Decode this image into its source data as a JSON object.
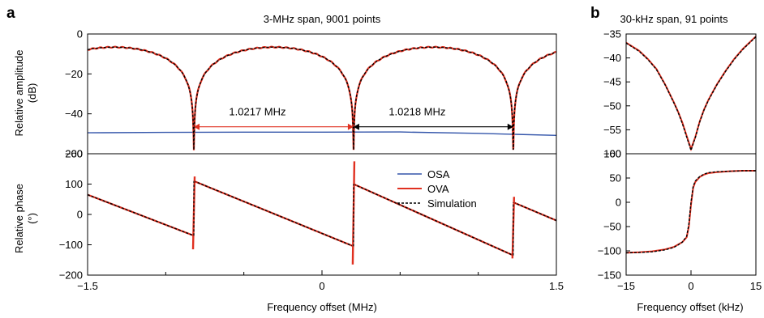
{
  "panel_labels": {
    "a": "a",
    "b": "b"
  },
  "colors": {
    "osa": "#3355aa",
    "ova": "#e03020",
    "sim": "#000000",
    "ann_red": "#e03020",
    "ann_black": "#000000"
  },
  "chart_data": [
    {
      "id": "a-amplitude",
      "type": "line",
      "title": "3-MHz span, 9001 points",
      "ylabel": [
        "Relative amplitude",
        "(dB)"
      ],
      "xlim": [
        -1.5,
        1.5
      ],
      "ylim": [
        -60,
        0
      ],
      "yticks": [
        0,
        -20,
        -40,
        -60
      ],
      "ytick_labels": [
        "0",
        "−20",
        "−40",
        "−60"
      ],
      "notch_centers": [
        -0.82,
        0.202,
        1.224
      ],
      "series": [
        {
          "name": "OSA",
          "key": "osa",
          "x": [
            -1.5,
            -1.0,
            -0.5,
            0.0,
            0.5,
            1.0,
            1.5
          ],
          "y": [
            -49.5,
            -49.3,
            -49.2,
            -49.2,
            -49.1,
            -49.8,
            -50.8
          ]
        },
        {
          "name": "OVA",
          "key": "ova",
          "peak": -6.6,
          "floor": -58
        },
        {
          "name": "Simulation",
          "key": "sim",
          "peak": -6.6,
          "floor": -58
        }
      ],
      "annotations": [
        {
          "text": "1.0217 MHz",
          "x_from": -0.82,
          "x_to": 0.202,
          "y": -46.5,
          "color": "ann_red"
        },
        {
          "text": "1.0218 MHz",
          "x_from": 0.202,
          "x_to": 1.224,
          "y": -46.5,
          "color": "ann_black"
        }
      ]
    },
    {
      "id": "a-phase",
      "type": "line",
      "xlabel": "Frequency offset (MHz)",
      "ylabel": [
        "Relative phase",
        "(°)"
      ],
      "xlim": [
        -1.5,
        1.5
      ],
      "ylim": [
        -200,
        200
      ],
      "xticks": [
        -1.5,
        0,
        1.5
      ],
      "xtick_labels": [
        "−1.5",
        "0",
        "1.5"
      ],
      "xminor": [
        -1.0,
        -0.5,
        0.5,
        1.0
      ],
      "yticks": [
        200,
        100,
        0,
        -100,
        -200
      ],
      "ytick_labels": [
        "200",
        "100",
        "0",
        "−100",
        "−200"
      ],
      "segments": [
        {
          "x": [
            -1.5,
            -0.82
          ],
          "y": [
            65,
            -70
          ]
        },
        {
          "x": [
            -0.82,
            0.202
          ],
          "y": [
            110,
            -105
          ]
        },
        {
          "x": [
            0.202,
            1.224
          ],
          "y": [
            100,
            -135
          ]
        },
        {
          "x": [
            1.224,
            1.5
          ],
          "y": [
            40,
            -20
          ]
        }
      ],
      "legend": {
        "position": "upper-right",
        "entries": [
          "OSA",
          "OVA",
          "Simulation"
        ]
      }
    },
    {
      "id": "b-amplitude",
      "type": "line",
      "title": "30-kHz span, 91 points",
      "xlim": [
        -15,
        15
      ],
      "ylim": [
        -60,
        -35
      ],
      "yticks": [
        -35,
        -40,
        -45,
        -50,
        -55,
        -60
      ],
      "ytick_labels": [
        "−35",
        "−40",
        "−45",
        "−50",
        "−55",
        "−60"
      ],
      "series": [
        {
          "name": "OVA",
          "key": "ova",
          "x": [
            -15,
            -12,
            -10,
            -8,
            -6,
            -4,
            -3,
            -2,
            -1,
            0,
            1,
            2,
            3,
            4,
            6,
            8,
            10,
            12,
            15
          ],
          "y": [
            -36.8,
            -38.5,
            -40.2,
            -42.3,
            -45.5,
            -49.2,
            -51.2,
            -53.5,
            -56.3,
            -59.0,
            -56.5,
            -53.3,
            -50.8,
            -48.8,
            -45.5,
            -42.7,
            -40.2,
            -38.1,
            -35.5
          ]
        },
        {
          "name": "Simulation",
          "key": "sim",
          "x": [
            -15,
            -12,
            -10,
            -8,
            -6,
            -4,
            -3,
            -2,
            -1,
            0,
            1,
            2,
            3,
            4,
            6,
            8,
            10,
            12,
            15
          ],
          "y": [
            -36.9,
            -38.6,
            -40.3,
            -42.4,
            -45.6,
            -49.3,
            -51.3,
            -53.7,
            -56.5,
            -59.3,
            -56.6,
            -53.4,
            -50.9,
            -48.9,
            -45.6,
            -42.8,
            -40.3,
            -38.2,
            -35.6
          ]
        }
      ]
    },
    {
      "id": "b-phase",
      "type": "line",
      "xlabel": "Frequency offset (kHz)",
      "xlim": [
        -15,
        15
      ],
      "ylim": [
        -150,
        100
      ],
      "xticks": [
        -15,
        0,
        15
      ],
      "xtick_labels": [
        "−15",
        "0",
        "15"
      ],
      "yticks": [
        100,
        50,
        0,
        -50,
        -100,
        -150
      ],
      "ytick_labels": [
        "100",
        "50",
        "0",
        "−50",
        "−100",
        "−150"
      ],
      "series": [
        {
          "name": "OVA",
          "key": "ova",
          "x": [
            -15,
            -12,
            -9,
            -6,
            -4,
            -3,
            -2,
            -1,
            -0.5,
            0,
            0.5,
            1,
            2,
            3,
            4,
            6,
            9,
            12,
            15
          ],
          "y": [
            -104,
            -103,
            -101,
            -97,
            -92,
            -87,
            -82,
            -72,
            -50,
            -5,
            30,
            42,
            52,
            57,
            60,
            62,
            64,
            65,
            65
          ]
        },
        {
          "name": "Simulation",
          "key": "sim",
          "x": [
            -15,
            -12,
            -9,
            -6,
            -4,
            -3,
            -2,
            -1,
            -0.5,
            0,
            0.5,
            1,
            2,
            3,
            4,
            6,
            9,
            12,
            15
          ],
          "y": [
            -104,
            -103.5,
            -102,
            -98,
            -93,
            -88,
            -82,
            -70,
            -45,
            0,
            33,
            44,
            53,
            58,
            61,
            63,
            64,
            65,
            65
          ]
        }
      ]
    }
  ]
}
